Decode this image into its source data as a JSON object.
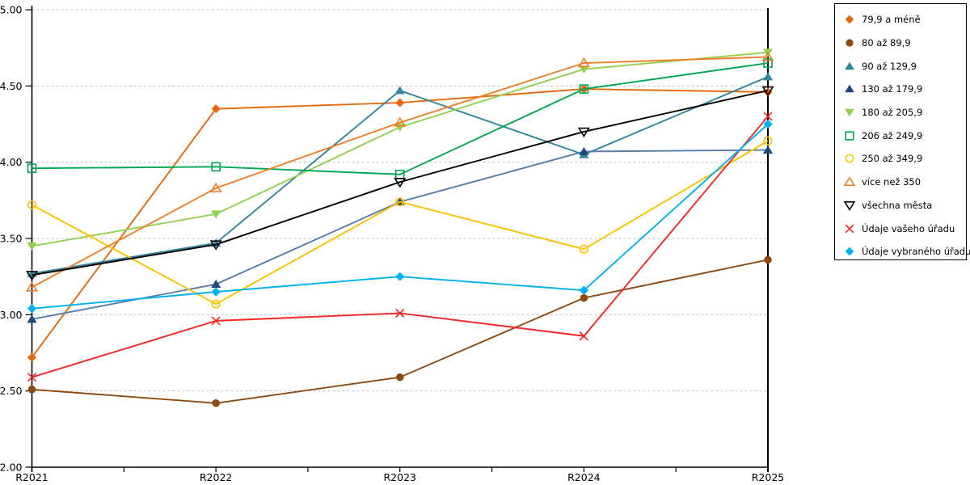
{
  "chart_data": {
    "type": "line",
    "title": "",
    "xlabel": "",
    "ylabel": "",
    "x_categories": [
      "R2021",
      "R2022",
      "R2023",
      "R2024",
      "R2025"
    ],
    "ylim": [
      2.0,
      5.0
    ],
    "ytick_step": 0.5,
    "ytick_labels": [
      "5.00",
      "4.50",
      "4.00",
      "3.50",
      "3.00",
      "2.50",
      "2.00"
    ],
    "grid": "horizontal-dashed",
    "grid_color": "#BDBDBD",
    "axis_color": "#000000",
    "legend_position": "right-outside",
    "series": [
      {
        "name": "79,9 a méně",
        "marker": "diamond",
        "fill": "filled",
        "color": "#E3690B",
        "values": [
          2.72,
          4.35,
          4.39,
          4.48,
          4.46
        ]
      },
      {
        "name": "80 až 89,9",
        "marker": "circle",
        "fill": "filled",
        "color": "#8C4A10",
        "values": [
          2.51,
          2.42,
          2.59,
          3.11,
          3.36
        ]
      },
      {
        "name": "90 až 129,9",
        "marker": "triangle-up",
        "fill": "filled",
        "color": "#31859C",
        "values": [
          3.27,
          3.47,
          4.47,
          4.05,
          4.56
        ]
      },
      {
        "name": "130 až 179,9",
        "marker": "triangle-up",
        "fill": "filled",
        "color": "#1F497D",
        "line_color": "#567CA9",
        "values": [
          2.97,
          3.2,
          3.74,
          4.07,
          4.08
        ]
      },
      {
        "name": "180 až 205,9",
        "marker": "triangle-down",
        "fill": "filled",
        "color": "#92D050",
        "values": [
          3.45,
          3.66,
          4.23,
          4.61,
          4.72
        ]
      },
      {
        "name": "206 až 249,9",
        "marker": "square",
        "fill": "open",
        "color": "#00A651",
        "values": [
          3.96,
          3.97,
          3.92,
          4.48,
          4.65
        ]
      },
      {
        "name": "250 až 349,9",
        "marker": "circle",
        "fill": "open",
        "color": "#FFC000",
        "values": [
          3.72,
          3.07,
          3.74,
          3.43,
          4.14
        ]
      },
      {
        "name": "více než 350",
        "marker": "triangle-up",
        "fill": "open",
        "color": "#F07E26",
        "values": [
          3.18,
          3.83,
          4.26,
          4.65,
          4.69
        ]
      },
      {
        "name": "všechna města",
        "marker": "triangle-down",
        "fill": "open",
        "color": "#000000",
        "values": [
          3.26,
          3.46,
          3.87,
          4.2,
          4.47
        ]
      },
      {
        "name": "Údaje vašeho úřadu",
        "marker": "x",
        "fill": "open",
        "color": "#F42525",
        "values": [
          2.59,
          2.96,
          3.01,
          2.86,
          4.3
        ]
      },
      {
        "name": "Údaje vybraného úřadu",
        "marker": "diamond",
        "fill": "filled",
        "color": "#00B0F0",
        "values": [
          3.04,
          3.15,
          3.25,
          3.16,
          4.25
        ]
      }
    ]
  }
}
